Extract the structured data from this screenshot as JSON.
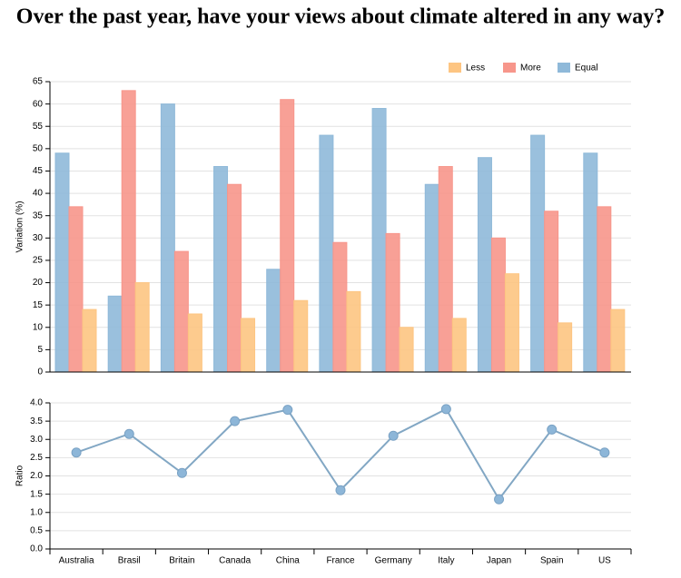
{
  "title": "Over the past year, have your views about climate altered in any way?",
  "chart_data": [
    {
      "type": "bar",
      "ylabel": "Variation (%)",
      "categories": [
        "Australia",
        "Brasil",
        "Britain",
        "Canada",
        "China",
        "France",
        "Germany",
        "Italy",
        "Japan",
        "Spain",
        "US"
      ],
      "series": [
        {
          "name": "Equal",
          "color": "#8fb9d9",
          "values": [
            49,
            17,
            60,
            46,
            23,
            53,
            59,
            42,
            48,
            53,
            49
          ]
        },
        {
          "name": "More",
          "color": "#f7968b",
          "values": [
            37,
            63,
            27,
            42,
            61,
            29,
            31,
            46,
            30,
            36,
            37
          ]
        },
        {
          "name": "Less",
          "color": "#fdc582",
          "values": [
            14,
            20,
            13,
            12,
            16,
            18,
            10,
            12,
            22,
            11,
            14
          ]
        }
      ],
      "legend_order": [
        2,
        1,
        0
      ],
      "legend": "top-right",
      "ylim": [
        0,
        65
      ],
      "yticks": [
        0,
        5,
        10,
        15,
        20,
        25,
        30,
        35,
        40,
        45,
        50,
        55,
        60,
        65
      ],
      "grid": true
    },
    {
      "type": "line",
      "ylabel": "Ratio",
      "color": "#82a7c4",
      "values": [
        2.64,
        3.15,
        2.08,
        3.5,
        3.81,
        1.61,
        3.1,
        3.83,
        1.36,
        3.27,
        2.64
      ],
      "ylim": [
        0,
        4
      ],
      "yticks": [
        {
          "value": 0,
          "label": "0.0"
        },
        0.5,
        {
          "value": 1,
          "label": "1.0"
        },
        1.5,
        {
          "value": 2,
          "label": "2.0"
        },
        2.5,
        {
          "value": 3,
          "label": "3.0"
        },
        3.5,
        {
          "value": 4,
          "label": "4.0"
        }
      ],
      "grid": true
    }
  ]
}
